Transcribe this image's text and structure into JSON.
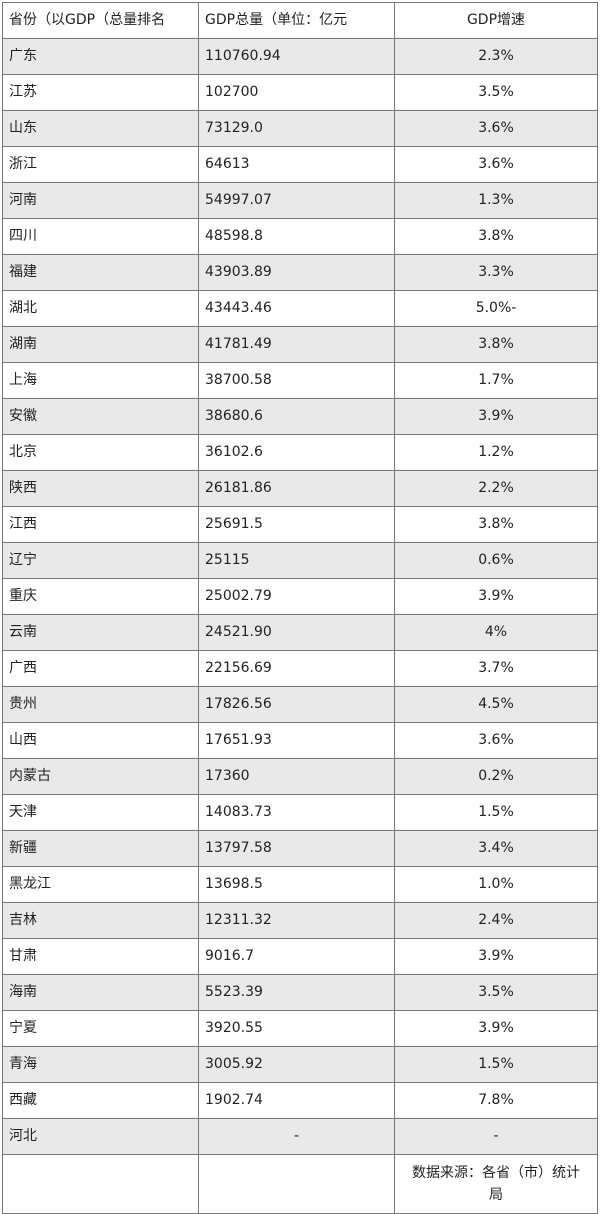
{
  "table": {
    "headers": [
      "省份（以GDP（总量排名",
      "GDP总量（单位：亿元",
      "GDP增速"
    ],
    "rows": [
      [
        "广东",
        "110760.94",
        "2.3%"
      ],
      [
        "江苏",
        "102700",
        "3.5%"
      ],
      [
        "山东",
        "73129.0",
        "3.6%"
      ],
      [
        "浙江",
        "64613",
        "3.6%"
      ],
      [
        "河南",
        "54997.07",
        "1.3%"
      ],
      [
        "四川",
        "48598.8",
        "3.8%"
      ],
      [
        "福建",
        "43903.89",
        "3.3%"
      ],
      [
        "湖北",
        "43443.46",
        "5.0%-"
      ],
      [
        "湖南",
        "41781.49",
        "3.8%"
      ],
      [
        "上海",
        "38700.58",
        "1.7%"
      ],
      [
        "安徽",
        "38680.6",
        "3.9%"
      ],
      [
        "北京",
        "36102.6",
        "1.2%"
      ],
      [
        "陕西",
        "26181.86",
        "2.2%"
      ],
      [
        "江西",
        "25691.5",
        "3.8%"
      ],
      [
        "辽宁",
        "25115",
        "0.6%"
      ],
      [
        "重庆",
        "25002.79",
        "3.9%"
      ],
      [
        "云南",
        "24521.90",
        "4%"
      ],
      [
        "广西",
        "22156.69",
        "3.7%"
      ],
      [
        "贵州",
        "17826.56",
        "4.5%"
      ],
      [
        "山西",
        "17651.93",
        "3.6%"
      ],
      [
        "内蒙古",
        "17360",
        "0.2%"
      ],
      [
        "天津",
        "14083.73",
        "1.5%"
      ],
      [
        "新疆",
        "13797.58",
        "3.4%"
      ],
      [
        "黑龙江",
        "13698.5",
        "1.0%"
      ],
      [
        "吉林",
        "12311.32",
        "2.4%"
      ],
      [
        "甘肃",
        "9016.7",
        "3.9%"
      ],
      [
        "海南",
        "5523.39",
        "3.5%"
      ],
      [
        "宁夏",
        "3920.55",
        "3.9%"
      ],
      [
        "青海",
        "3005.92",
        "1.5%"
      ],
      [
        "西藏",
        "1902.74",
        "7.8%"
      ],
      [
        "河北",
        "-",
        "-"
      ]
    ],
    "footer": [
      "",
      "",
      "数据来源：各省（市）统计局"
    ]
  }
}
